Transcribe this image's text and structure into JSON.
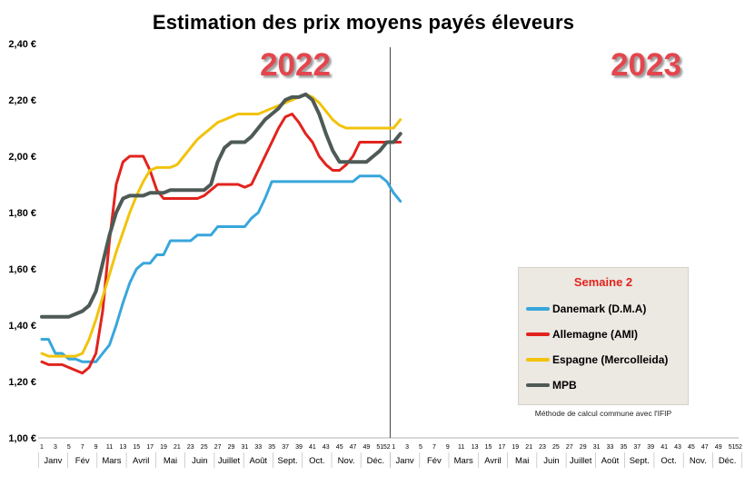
{
  "title": "Estimation des prix moyens payés éleveurs",
  "year_labels": [
    "2022",
    "2023"
  ],
  "legend": {
    "title": "Semaine 2",
    "note": "Méthode de calcul commune avec l'IFIP",
    "items": [
      {
        "label": "Danemark (D.M.A)",
        "color": "#38a6dc"
      },
      {
        "label": "Allemagne (AMI)",
        "color": "#e2231d"
      },
      {
        "label": "Espagne (Mercolleida)",
        "color": "#f2c30c"
      },
      {
        "label": "MPB",
        "color": "#4e5a56"
      }
    ]
  },
  "chart_data": {
    "type": "line",
    "title": "Estimation des prix moyens payés éleveurs",
    "xlabel": "",
    "ylabel": "",
    "ylim": [
      1.0,
      2.4
    ],
    "ytick_step": 0.2,
    "grid": false,
    "legend_position": "right-middle",
    "yticks": [
      {
        "value": 1.0,
        "label": "1,00 €"
      },
      {
        "value": 1.2,
        "label": "1,20 €"
      },
      {
        "value": 1.4,
        "label": "1,40 €"
      },
      {
        "value": 1.6,
        "label": "1,60 €"
      },
      {
        "value": 1.8,
        "label": "1,80 €"
      },
      {
        "value": 2.0,
        "label": "2,00 €"
      },
      {
        "value": 2.2,
        "label": "2,20 €"
      },
      {
        "value": 2.4,
        "label": "2,40 €"
      }
    ],
    "x_unit": "semaine",
    "years": [
      "2022",
      "2023"
    ],
    "week_tick_labels": [
      "1",
      "3",
      "5",
      "7",
      "9",
      "11",
      "13",
      "15",
      "17",
      "19",
      "21",
      "23",
      "25",
      "27",
      "29",
      "31",
      "33",
      "35",
      "37",
      "39",
      "41",
      "43",
      "45",
      "47",
      "49",
      "51",
      "52"
    ],
    "month_labels": [
      "Janv",
      "Fév",
      "Mars",
      "Avril",
      "Mai",
      "Juin",
      "Juillet",
      "Août",
      "Sept.",
      "Oct.",
      "Nov.",
      "Déc."
    ],
    "series": [
      {
        "id": "danemark",
        "name": "Danemark (D.M.A)",
        "color": "#38a6dc",
        "width": 3,
        "values_2022": [
          1.35,
          1.35,
          1.3,
          1.3,
          1.28,
          1.28,
          1.27,
          1.27,
          1.27,
          1.3,
          1.33,
          1.4,
          1.48,
          1.55,
          1.6,
          1.62,
          1.62,
          1.65,
          1.65,
          1.7,
          1.7,
          1.7,
          1.7,
          1.72,
          1.72,
          1.72,
          1.75,
          1.75,
          1.75,
          1.75,
          1.75,
          1.78,
          1.8,
          1.85,
          1.91,
          1.91,
          1.91,
          1.91,
          1.91,
          1.91,
          1.91,
          1.91,
          1.91,
          1.91,
          1.91,
          1.91,
          1.91,
          1.93,
          1.93,
          1.93,
          1.93,
          1.91
        ],
        "values_2023": [
          1.87,
          1.84
        ]
      },
      {
        "id": "allemagne",
        "name": "Allemagne (AMI)",
        "color": "#e2231d",
        "width": 3,
        "values_2022": [
          1.27,
          1.26,
          1.26,
          1.26,
          1.25,
          1.24,
          1.23,
          1.25,
          1.3,
          1.45,
          1.7,
          1.9,
          1.98,
          2.0,
          2.0,
          2.0,
          1.95,
          1.88,
          1.85,
          1.85,
          1.85,
          1.85,
          1.85,
          1.85,
          1.86,
          1.88,
          1.9,
          1.9,
          1.9,
          1.9,
          1.89,
          1.9,
          1.95,
          2.0,
          2.05,
          2.1,
          2.14,
          2.15,
          2.12,
          2.08,
          2.05,
          2.0,
          1.97,
          1.95,
          1.95,
          1.97,
          2.0,
          2.05,
          2.05,
          2.05,
          2.05,
          2.05
        ],
        "values_2023": [
          2.05,
          2.05
        ]
      },
      {
        "id": "espagne",
        "name": "Espagne (Mercolleida)",
        "color": "#f2c30c",
        "width": 3,
        "values_2022": [
          1.3,
          1.29,
          1.29,
          1.29,
          1.29,
          1.29,
          1.3,
          1.35,
          1.42,
          1.5,
          1.58,
          1.66,
          1.73,
          1.8,
          1.86,
          1.91,
          1.95,
          1.96,
          1.96,
          1.96,
          1.97,
          2.0,
          2.03,
          2.06,
          2.08,
          2.1,
          2.12,
          2.13,
          2.14,
          2.15,
          2.15,
          2.15,
          2.15,
          2.16,
          2.17,
          2.18,
          2.19,
          2.2,
          2.21,
          2.22,
          2.21,
          2.19,
          2.16,
          2.13,
          2.11,
          2.1,
          2.1,
          2.1,
          2.1,
          2.1,
          2.1,
          2.1
        ],
        "values_2023": [
          2.1,
          2.13
        ]
      },
      {
        "id": "mpb",
        "name": "MPB",
        "color": "#4e5a56",
        "width": 4,
        "values_2022": [
          1.43,
          1.43,
          1.43,
          1.43,
          1.43,
          1.44,
          1.45,
          1.47,
          1.52,
          1.62,
          1.72,
          1.8,
          1.85,
          1.86,
          1.86,
          1.86,
          1.87,
          1.87,
          1.87,
          1.88,
          1.88,
          1.88,
          1.88,
          1.88,
          1.88,
          1.9,
          1.98,
          2.03,
          2.05,
          2.05,
          2.05,
          2.07,
          2.1,
          2.13,
          2.15,
          2.17,
          2.2,
          2.21,
          2.21,
          2.22,
          2.2,
          2.15,
          2.08,
          2.02,
          1.98,
          1.98,
          1.98,
          1.98,
          1.98,
          2.0,
          2.02,
          2.05
        ],
        "values_2023": [
          2.05,
          2.08
        ]
      }
    ]
  }
}
